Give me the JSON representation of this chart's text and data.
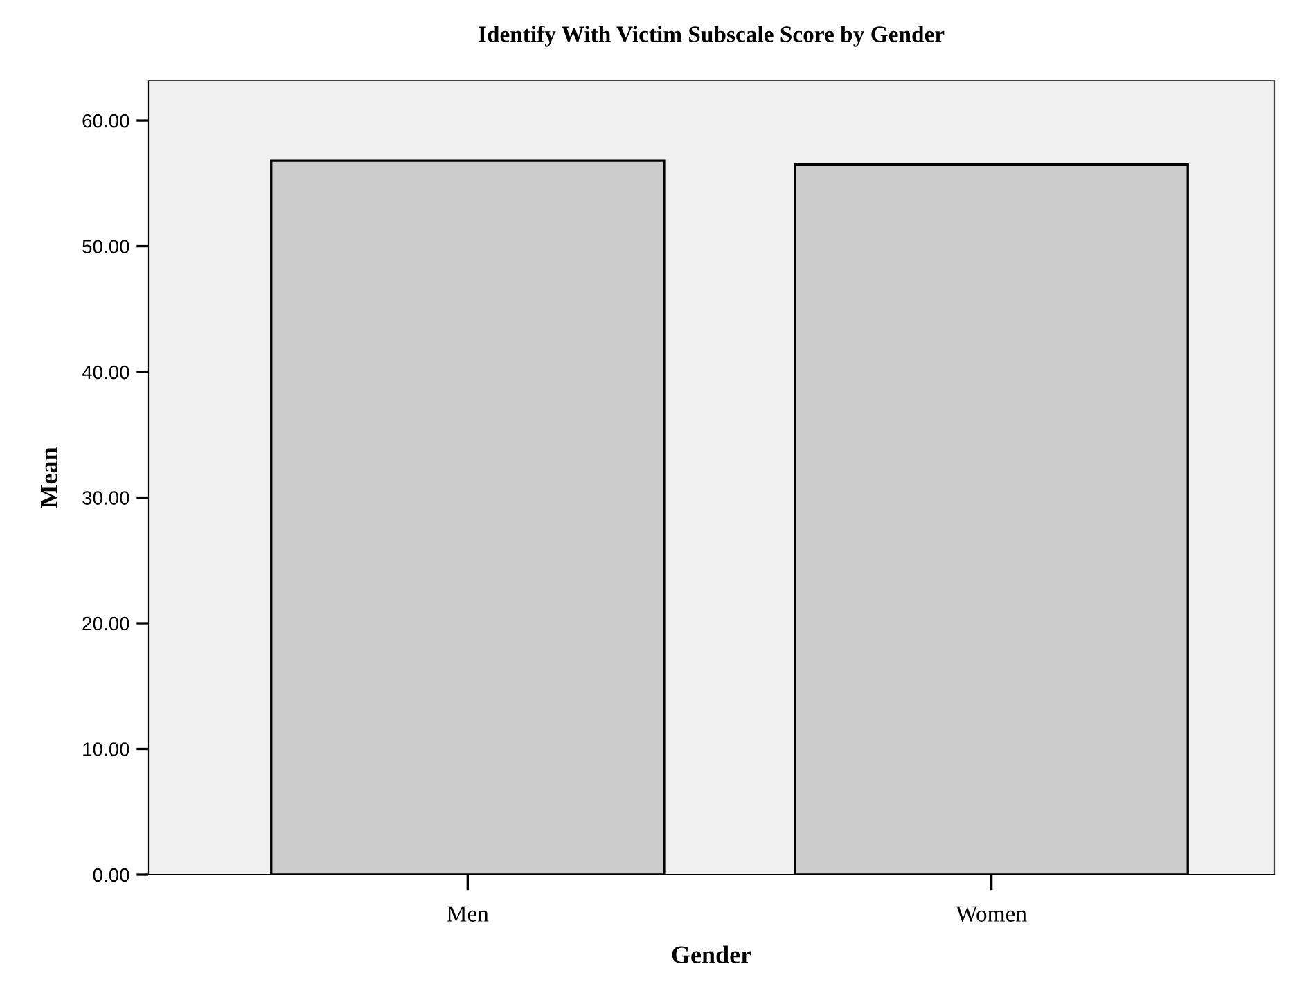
{
  "chart_data": {
    "type": "bar",
    "title": "Identify With Victim Subscale Score by Gender",
    "xlabel": "Gender",
    "ylabel": "Mean",
    "categories": [
      "Men",
      "Women"
    ],
    "values": [
      56.8,
      56.5
    ],
    "color": "#cccccc",
    "ylim": [
      0,
      63.2
    ],
    "yticks": [
      {
        "value": 0,
        "label": "0.00"
      },
      {
        "value": 10,
        "label": "10.00"
      },
      {
        "value": 20,
        "label": "20.00"
      },
      {
        "value": 30,
        "label": "30.00"
      },
      {
        "value": 40,
        "label": "40.00"
      },
      {
        "value": 50,
        "label": "50.00"
      },
      {
        "value": 60,
        "label": "60.00"
      }
    ],
    "grid": false
  }
}
